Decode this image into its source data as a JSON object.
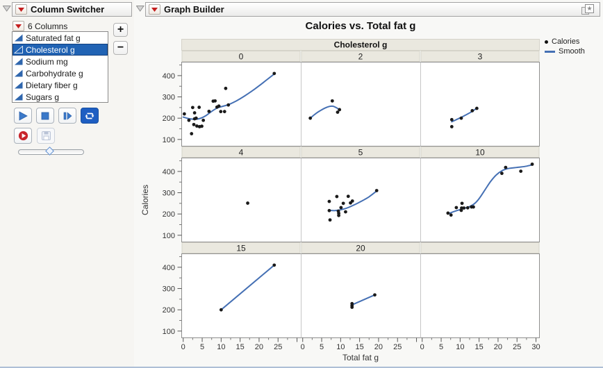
{
  "colors": {
    "selection_blue": "#2163b4",
    "smooth_line": "#4570b4",
    "point_black": "#1a1a1a",
    "band_bg": "#eae8df",
    "band_border": "#d5d3c9",
    "plot_border": "#8f8f8f",
    "facet_divider": "#c6c6c6",
    "icon_blue": "#3b79c9",
    "record_red": "#c8252c",
    "active_button_blue": "#1e5ec2"
  },
  "column_switcher": {
    "title": "Column Switcher",
    "count_label": "6 Columns",
    "columns": [
      {
        "label": "Saturated fat g",
        "selected": false
      },
      {
        "label": "Cholesterol g",
        "selected": true
      },
      {
        "label": "Sodium mg",
        "selected": false
      },
      {
        "label": "Carbohydrate g",
        "selected": false
      },
      {
        "label": "Dietary fiber g",
        "selected": false
      },
      {
        "label": "Sugars g",
        "selected": false
      }
    ],
    "add_label": "+",
    "remove_label": "−",
    "transport_buttons": [
      {
        "icon": "play-icon",
        "active": false
      },
      {
        "icon": "stop-icon",
        "active": false
      },
      {
        "icon": "step-icon",
        "active": false
      },
      {
        "icon": "loop-icon",
        "active": true
      }
    ],
    "action_buttons": [
      {
        "icon": "record-icon",
        "disabled": false
      },
      {
        "icon": "save-icon",
        "disabled": true
      }
    ],
    "slider": {
      "position_pct": 48
    }
  },
  "graph_builder": {
    "title": "Graph Builder",
    "window_icon": "layered-star-icon",
    "legend": [
      {
        "label": "Calories",
        "marker": "dot"
      },
      {
        "label": "Smooth",
        "marker": "line"
      }
    ]
  },
  "chart_data": {
    "type": "scatter",
    "title": "Calories vs. Total fat g",
    "xlabel": "Total fat g",
    "ylabel": "Calories",
    "facet_variable": "Cholesterol g",
    "series": [
      "Calories",
      "Smooth"
    ],
    "xlim": [
      -0.5,
      31
    ],
    "ylim": [
      70,
      465
    ],
    "xticks": [
      0,
      5,
      10,
      15,
      20,
      25,
      30
    ],
    "xtick_labels_standard": [
      0,
      5,
      10,
      15,
      20,
      25
    ],
    "xtick_labels_last_col": [
      0,
      5,
      10,
      15,
      20,
      25,
      30
    ],
    "xminor_step": 2.5,
    "yticks": [
      100,
      200,
      300,
      400
    ],
    "yminor": [
      150,
      250,
      350,
      450
    ],
    "grid": "off",
    "legend_position": "right-top",
    "facet_grid": {
      "rows": 3,
      "cols": 3
    },
    "facets": [
      {
        "label": "0",
        "points": [
          [
            0.3,
            220
          ],
          [
            1.5,
            190
          ],
          [
            2.2,
            127
          ],
          [
            2.5,
            250
          ],
          [
            2.8,
            170
          ],
          [
            3.0,
            225
          ],
          [
            3.0,
            197
          ],
          [
            3.4,
            200
          ],
          [
            3.6,
            163
          ],
          [
            4.2,
            251
          ],
          [
            4.3,
            160
          ],
          [
            4.9,
            162
          ],
          [
            5.3,
            190
          ],
          [
            6.8,
            232
          ],
          [
            7.9,
            280
          ],
          [
            8.4,
            281
          ],
          [
            8.9,
            252
          ],
          [
            9.4,
            257
          ],
          [
            9.9,
            231
          ],
          [
            10.9,
            231
          ],
          [
            11.2,
            340
          ],
          [
            11.9,
            262
          ],
          [
            24,
            410
          ]
        ],
        "smooth": [
          [
            0,
            205
          ],
          [
            1.5,
            198
          ],
          [
            3,
            195
          ],
          [
            4.5,
            199
          ],
          [
            6,
            212
          ],
          [
            7.5,
            232
          ],
          [
            9,
            248
          ],
          [
            10.5,
            256
          ],
          [
            12,
            264
          ],
          [
            14,
            281
          ],
          [
            16,
            302
          ],
          [
            18,
            326
          ],
          [
            20,
            352
          ],
          [
            22,
            380
          ],
          [
            24,
            408
          ]
        ]
      },
      {
        "label": "2",
        "points": [
          [
            2,
            200
          ],
          [
            7.8,
            281
          ],
          [
            9.2,
            228
          ],
          [
            9.7,
            240
          ]
        ],
        "smooth": [
          [
            2,
            200
          ],
          [
            3.2,
            218
          ],
          [
            4.5,
            234
          ],
          [
            5.8,
            247
          ],
          [
            7,
            255
          ],
          [
            8,
            256
          ],
          [
            9,
            248
          ],
          [
            9.7,
            239
          ]
        ]
      },
      {
        "label": "3",
        "points": [
          [
            7.8,
            193
          ],
          [
            7.8,
            160
          ],
          [
            10.3,
            200
          ],
          [
            13.2,
            235
          ],
          [
            14.4,
            246
          ]
        ],
        "smooth": [
          [
            7.8,
            183
          ],
          [
            9,
            193
          ],
          [
            10.3,
            204
          ],
          [
            11.6,
            216
          ],
          [
            12.9,
            229
          ],
          [
            14.4,
            247
          ]
        ]
      },
      {
        "label": "4",
        "points": [
          [
            17,
            251
          ]
        ],
        "smooth": []
      },
      {
        "label": "5",
        "points": [
          [
            7,
            259
          ],
          [
            7,
            216
          ],
          [
            7.2,
            172
          ],
          [
            9,
            282
          ],
          [
            9.4,
            213
          ],
          [
            9.5,
            203
          ],
          [
            9.5,
            193
          ],
          [
            10.1,
            230
          ],
          [
            10.7,
            250
          ],
          [
            11.3,
            210
          ],
          [
            12,
            283
          ],
          [
            12.6,
            252
          ],
          [
            13.1,
            261
          ],
          [
            19.5,
            310
          ]
        ],
        "smooth": [
          [
            7,
            217
          ],
          [
            8.5,
            216
          ],
          [
            10,
            220
          ],
          [
            11.5,
            227
          ],
          [
            13,
            238
          ],
          [
            14.5,
            251
          ],
          [
            16,
            265
          ],
          [
            17.5,
            281
          ],
          [
            19.5,
            308
          ]
        ]
      },
      {
        "label": "10",
        "points": [
          [
            6.8,
            204
          ],
          [
            7.6,
            195
          ],
          [
            9,
            230
          ],
          [
            10.3,
            217
          ],
          [
            10.4,
            228
          ],
          [
            10.5,
            250
          ],
          [
            11,
            228
          ],
          [
            12,
            229
          ],
          [
            13,
            233
          ],
          [
            13.5,
            233
          ],
          [
            21,
            391
          ],
          [
            22,
            419
          ],
          [
            26,
            401
          ],
          [
            29,
            434
          ]
        ],
        "smooth": [
          [
            6.8,
            201
          ],
          [
            8,
            209
          ],
          [
            9.5,
            218
          ],
          [
            11,
            226
          ],
          [
            12.5,
            235
          ],
          [
            13.8,
            249
          ],
          [
            15,
            272
          ],
          [
            16.5,
            312
          ],
          [
            18,
            352
          ],
          [
            19.5,
            383
          ],
          [
            21,
            403
          ],
          [
            22.5,
            413
          ],
          [
            24,
            417
          ],
          [
            26,
            421
          ],
          [
            27.5,
            425
          ],
          [
            29,
            431
          ]
        ]
      },
      {
        "label": "15",
        "points": [
          [
            10,
            200
          ],
          [
            24,
            410
          ]
        ],
        "smooth": [
          [
            10,
            200
          ],
          [
            24,
            410
          ]
        ]
      },
      {
        "label": "20",
        "points": [
          [
            13,
            229
          ],
          [
            13,
            220
          ],
          [
            13,
            212
          ],
          [
            19,
            270
          ]
        ],
        "smooth": [
          [
            13,
            223
          ],
          [
            19,
            270
          ]
        ]
      },
      {
        "label": "",
        "points": [],
        "smooth": []
      }
    ]
  }
}
